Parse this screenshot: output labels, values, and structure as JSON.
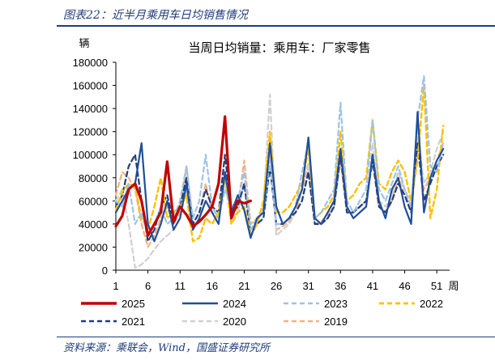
{
  "figure": {
    "title": "图表22：近半月乘用车日均销售情况",
    "source": "资料来源：乘联会，Wind，国盛证券研究所"
  },
  "chart_data": {
    "type": "line",
    "title": "当周日均销量：乘用车：厂家零售",
    "ylabel": "辆",
    "xlabel": "周",
    "ylim": [
      0,
      180000
    ],
    "yticks": [
      0,
      20000,
      40000,
      60000,
      80000,
      100000,
      120000,
      140000,
      160000,
      180000
    ],
    "xlim": [
      1,
      53
    ],
    "xticks": [
      1,
      6,
      11,
      16,
      21,
      26,
      31,
      36,
      41,
      46,
      51
    ],
    "grid": false,
    "legend_position": "bottom",
    "series": [
      {
        "name": "2025",
        "color": "#c00000",
        "dash": "solid",
        "width": 3.2,
        "x": [
          1,
          2,
          3,
          4,
          5,
          6,
          7,
          8,
          9,
          10,
          11,
          12,
          13,
          14,
          15,
          16,
          17,
          18,
          19,
          20,
          21,
          22
        ],
        "y": [
          38000,
          47000,
          70000,
          75000,
          60000,
          30000,
          40000,
          50000,
          94000,
          42000,
          55000,
          48000,
          38000,
          42000,
          48000,
          55000,
          75000,
          133000,
          45000,
          60000,
          58000,
          60000
        ]
      },
      {
        "name": "2024",
        "color": "#1f4e9a",
        "dash": "solid",
        "width": 2.2,
        "x": [
          1,
          2,
          3,
          4,
          5,
          6,
          7,
          8,
          9,
          10,
          11,
          12,
          13,
          14,
          15,
          16,
          17,
          18,
          19,
          20,
          21,
          22,
          23,
          24,
          25,
          26,
          27,
          28,
          29,
          30,
          31,
          32,
          33,
          34,
          35,
          36,
          37,
          38,
          39,
          40,
          41,
          42,
          43,
          44,
          45,
          46,
          47,
          48,
          49,
          50,
          51,
          52
        ],
        "y": [
          50000,
          60000,
          70000,
          75000,
          110000,
          40000,
          25000,
          40000,
          60000,
          35000,
          45000,
          75000,
          35000,
          45000,
          60000,
          50000,
          40000,
          85000,
          50000,
          65000,
          52000,
          28000,
          45000,
          50000,
          110000,
          55000,
          40000,
          45000,
          55000,
          70000,
          115000,
          45000,
          40000,
          50000,
          60000,
          105000,
          55000,
          45000,
          50000,
          55000,
          100000,
          60000,
          45000,
          70000,
          80000,
          55000,
          40000,
          137000,
          50000,
          80000,
          95000,
          105000
        ]
      },
      {
        "name": "2023",
        "color": "#9dc3e6",
        "dash": "dash",
        "width": 2.2,
        "x": [
          1,
          2,
          3,
          4,
          5,
          6,
          7,
          8,
          9,
          10,
          11,
          12,
          13,
          14,
          15,
          16,
          17,
          18,
          19,
          20,
          21,
          22,
          23,
          24,
          25,
          26,
          27,
          28,
          29,
          30,
          31,
          32,
          33,
          34,
          35,
          36,
          37,
          38,
          39,
          40,
          41,
          42,
          43,
          44,
          45,
          46,
          47,
          48,
          49,
          50,
          51,
          52
        ],
        "y": [
          60000,
          55000,
          75000,
          40000,
          50000,
          30000,
          40000,
          55000,
          40000,
          45000,
          60000,
          90000,
          45000,
          60000,
          100000,
          55000,
          45000,
          70000,
          55000,
          60000,
          85000,
          35000,
          45000,
          50000,
          95000,
          40000,
          40000,
          45000,
          55000,
          85000,
          110000,
          45000,
          50000,
          60000,
          70000,
          145000,
          60000,
          50000,
          60000,
          70000,
          130000,
          70000,
          60000,
          75000,
          90000,
          70000,
          55000,
          130000,
          168000,
          90000,
          85000,
          110000
        ]
      },
      {
        "name": "2022",
        "color": "#ffc000",
        "dash": "dash",
        "width": 2.4,
        "x": [
          1,
          2,
          3,
          4,
          5,
          6,
          7,
          8,
          9,
          10,
          11,
          12,
          13,
          14,
          15,
          16,
          17,
          18,
          19,
          20,
          21,
          22,
          23,
          24,
          25,
          26,
          27,
          28,
          29,
          30,
          31,
          32,
          33,
          34,
          35,
          36,
          37,
          38,
          39,
          40,
          41,
          42,
          43,
          44,
          45,
          46,
          47,
          48,
          49,
          50,
          51,
          52
        ],
        "y": [
          52000,
          68000,
          75000,
          72000,
          45000,
          35000,
          55000,
          80000,
          45000,
          50000,
          55000,
          65000,
          25000,
          28000,
          45000,
          40000,
          50000,
          80000,
          40000,
          50000,
          55000,
          30000,
          40000,
          60000,
          120000,
          50000,
          50000,
          55000,
          65000,
          75000,
          105000,
          45000,
          50000,
          55000,
          65000,
          120000,
          60000,
          65000,
          75000,
          80000,
          130000,
          75000,
          70000,
          85000,
          95000,
          85000,
          60000,
          95000,
          160000,
          45000,
          70000,
          125000
        ]
      },
      {
        "name": "2021",
        "color": "#1f3d7a",
        "dash": "dash",
        "width": 2.2,
        "x": [
          1,
          2,
          3,
          4,
          5,
          6,
          7,
          8,
          9,
          10,
          11,
          12,
          13,
          14,
          15,
          16,
          17,
          18,
          19,
          20,
          21,
          22,
          23,
          24,
          25,
          26,
          27,
          28,
          29,
          30,
          31,
          32,
          33,
          34,
          35,
          36,
          37,
          38,
          39,
          40,
          41,
          42,
          43,
          44,
          45,
          46,
          47,
          48,
          49,
          50,
          51,
          52
        ],
        "y": [
          55000,
          65000,
          90000,
          100000,
          60000,
          25000,
          35000,
          55000,
          65000,
          40000,
          55000,
          80000,
          40000,
          50000,
          70000,
          55000,
          50000,
          100000,
          50000,
          55000,
          75000,
          30000,
          40000,
          45000,
          90000,
          40000,
          40000,
          45000,
          50000,
          60000,
          85000,
          40000,
          40000,
          45000,
          55000,
          100000,
          50000,
          50000,
          55000,
          60000,
          95000,
          55000,
          50000,
          60000,
          75000,
          65000,
          50000,
          110000,
          60000,
          75000,
          90000,
          100000
        ]
      },
      {
        "name": "2020",
        "color": "#d0d0d0",
        "dash": "dash",
        "width": 2.2,
        "x": [
          1,
          2,
          3,
          4,
          5,
          6,
          7,
          8,
          9,
          10,
          11,
          12,
          13,
          14,
          15,
          16,
          17,
          18,
          19,
          20,
          21,
          22,
          23,
          24,
          25,
          26,
          27,
          28,
          29,
          30,
          31,
          32,
          33,
          34,
          35,
          36,
          37,
          38,
          39,
          40,
          41,
          42,
          43,
          44,
          45,
          46,
          47,
          48,
          49,
          50,
          51,
          52
        ],
        "y": [
          60000,
          70000,
          40000,
          2000,
          5000,
          10000,
          18000,
          25000,
          30000,
          35000,
          45000,
          70000,
          35000,
          45000,
          60000,
          50000,
          40000,
          80000,
          45000,
          50000,
          75000,
          35000,
          40000,
          55000,
          152000,
          30000,
          35000,
          40000,
          50000,
          60000,
          90000,
          40000,
          40000,
          45000,
          55000,
          100000,
          50000,
          50000,
          55000,
          60000,
          110000,
          60000,
          55000,
          65000,
          85000,
          70000,
          60000,
          120000,
          75000,
          85000,
          105000,
          120000
        ]
      },
      {
        "name": "2019",
        "color": "#f4b183",
        "dash": "dash",
        "width": 2.2,
        "x": [
          1,
          2,
          3,
          4,
          5,
          6,
          7,
          8,
          9,
          10,
          11,
          12,
          13,
          14,
          15,
          16,
          17,
          18,
          19,
          20,
          21,
          22,
          23,
          24,
          25,
          26,
          27,
          28,
          29,
          30,
          31,
          32,
          33,
          34,
          35,
          36,
          37,
          38,
          39,
          40,
          41,
          42,
          43,
          44,
          45,
          46,
          47,
          48,
          49,
          50,
          51,
          52
        ],
        "y": [
          65000,
          85000,
          80000,
          70000,
          40000,
          20000,
          30000,
          45000,
          55000,
          40000,
          50000,
          90000,
          40000,
          50000,
          75000,
          50000,
          45000,
          85000,
          45000,
          55000,
          95000,
          40000,
          45000,
          55000,
          105000,
          35000,
          38000,
          42000,
          50000,
          70000,
          92000,
          40000,
          42000,
          48000,
          55000,
          95000,
          50000,
          50000,
          55000,
          60000,
          100000,
          55000,
          50000,
          60000,
          80000,
          65000,
          55000,
          115000,
          70000,
          80000,
          95000,
          110000
        ]
      }
    ]
  }
}
